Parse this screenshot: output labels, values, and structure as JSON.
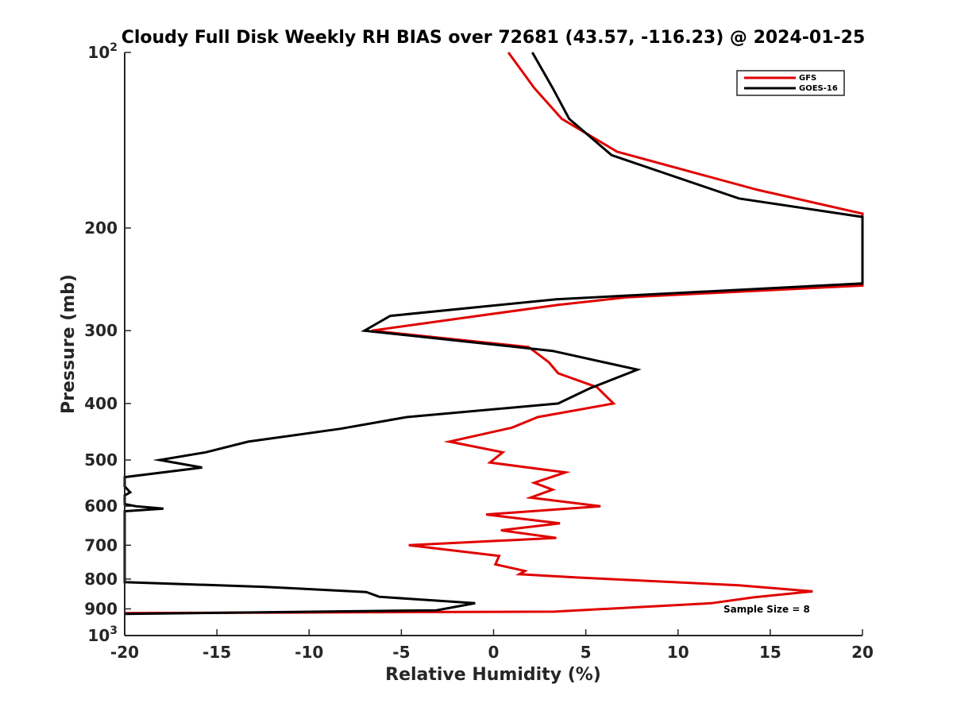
{
  "chart_data": {
    "type": "line",
    "title": "Cloudy Full Disk Weekly RH BIAS over 72681 (43.57, -116.23) @ 2024-01-25",
    "xlabel": "Relative Humidity (%)",
    "ylabel": "Pressure (mb)",
    "xlim": [
      -20,
      20
    ],
    "ylim": [
      100,
      1000
    ],
    "y_scale": "log",
    "y_reversed": true,
    "x_ticks": [
      -20,
      -15,
      -10,
      -5,
      0,
      5,
      10,
      15,
      20
    ],
    "x_tick_labels": [
      "-20",
      "-15",
      "-10",
      "-5",
      "0",
      "5",
      "10",
      "15",
      "20"
    ],
    "y_ticks": [
      {
        "value": 100,
        "base": "10",
        "exp": "2"
      },
      {
        "value": 200,
        "label": "200"
      },
      {
        "value": 300,
        "label": "300"
      },
      {
        "value": 400,
        "label": "400"
      },
      {
        "value": 500,
        "label": "500"
      },
      {
        "value": 600,
        "label": "600"
      },
      {
        "value": 700,
        "label": "700"
      },
      {
        "value": 800,
        "label": "800"
      },
      {
        "value": 900,
        "label": "900"
      },
      {
        "value": 1000,
        "base": "10",
        "exp": "3"
      }
    ],
    "grid": false,
    "legend_position": "top-right",
    "annotation": "Sample Size = 8",
    "series": [
      {
        "name": "GFS",
        "color": "#e00000",
        "points": [
          [
            0.8,
            100
          ],
          [
            2.2,
            115
          ],
          [
            3.7,
            130
          ],
          [
            6.7,
            148
          ],
          [
            14.3,
            172
          ],
          [
            20,
            189
          ],
          [
            20,
            189.5
          ],
          [
            20,
            251
          ],
          [
            7.2,
            263
          ],
          [
            3.5,
            271
          ],
          [
            -0.5,
            282
          ],
          [
            -6.6,
            300
          ],
          [
            1.9,
            320
          ],
          [
            3.0,
            340
          ],
          [
            3.5,
            355
          ],
          [
            5.6,
            375
          ],
          [
            6.5,
            400
          ],
          [
            2.4,
            422
          ],
          [
            1.0,
            440
          ],
          [
            -2.4,
            465
          ],
          [
            0.5,
            485
          ],
          [
            -0.2,
            505
          ],
          [
            3.9,
            525
          ],
          [
            2.2,
            547
          ],
          [
            3.2,
            562
          ],
          [
            2.0,
            580
          ],
          [
            5.8,
            600
          ],
          [
            -0.4,
            620
          ],
          [
            3.6,
            642
          ],
          [
            0.4,
            660
          ],
          [
            3.4,
            680
          ],
          [
            -4.6,
            700
          ],
          [
            0.3,
            730
          ],
          [
            0.1,
            755
          ],
          [
            1.7,
            775
          ],
          [
            1.4,
            785
          ],
          [
            4.5,
            795
          ],
          [
            13.3,
            820
          ],
          [
            17.3,
            840
          ],
          [
            14.1,
            860
          ],
          [
            11.8,
            880
          ],
          [
            3.3,
            910
          ],
          [
            -20,
            915
          ]
        ]
      },
      {
        "name": "GOES-16",
        "color": "#000000",
        "points": [
          [
            2.1,
            100
          ],
          [
            3.2,
            115
          ],
          [
            4.1,
            130
          ],
          [
            6.4,
            150
          ],
          [
            13.3,
            178
          ],
          [
            20,
            191.5
          ],
          [
            20,
            192
          ],
          [
            20,
            249
          ],
          [
            3.4,
            265
          ],
          [
            -5.6,
            283
          ],
          [
            -7.0,
            300
          ],
          [
            3.2,
            325
          ],
          [
            7.8,
            350
          ],
          [
            5.2,
            377
          ],
          [
            3.5,
            400
          ],
          [
            -4.7,
            422
          ],
          [
            -8.3,
            442
          ],
          [
            -13.3,
            465
          ],
          [
            -15.6,
            485
          ],
          [
            -18.1,
            500
          ],
          [
            -15.8,
            515
          ],
          [
            -20,
            535
          ],
          [
            -20,
            555
          ],
          [
            -19.7,
            568
          ],
          [
            -20,
            575
          ],
          [
            -20,
            595
          ],
          [
            -19.4,
            600
          ],
          [
            -17.9,
            606
          ],
          [
            -20,
            612
          ],
          [
            -20,
            810
          ],
          [
            -12.4,
            825
          ],
          [
            -6.9,
            842
          ],
          [
            -6.2,
            858
          ],
          [
            -1.0,
            880
          ],
          [
            -3.1,
            905
          ],
          [
            -20,
            918
          ]
        ]
      }
    ]
  }
}
